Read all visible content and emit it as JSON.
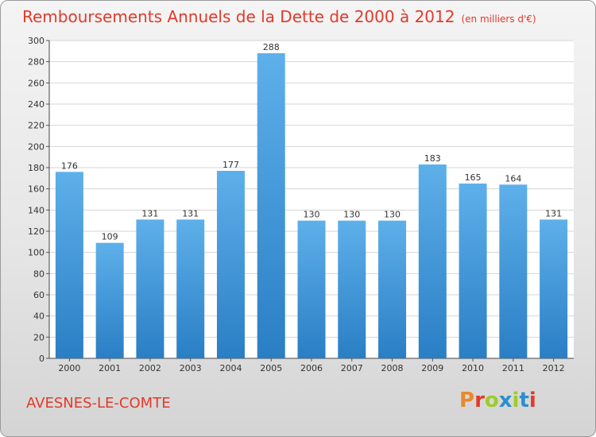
{
  "header": {
    "title": "Remboursements Annuels de la Dette de 2000 à 2012",
    "subtitle": "(en milliers d'€)"
  },
  "footer": {
    "city": "AVESNES-LE-COMTE",
    "logo": "Proxiti"
  },
  "colors": {
    "title": "#e23a2a",
    "bar_top": "#5eb0ea",
    "bar_bottom": "#2a7ec4",
    "logo_letters": [
      "#e8892a",
      "#e23a2a",
      "#9ccc2a",
      "#2a8fd0",
      "#9ccc2a",
      "#2a8fd0",
      "#e23a2a"
    ]
  },
  "chart_data": {
    "type": "bar",
    "categories": [
      "2000",
      "2001",
      "2002",
      "2003",
      "2004",
      "2005",
      "2006",
      "2007",
      "2008",
      "2009",
      "2010",
      "2011",
      "2012"
    ],
    "values": [
      176,
      109,
      131,
      131,
      177,
      288,
      130,
      130,
      130,
      183,
      165,
      164,
      131
    ],
    "title": "Remboursements Annuels de la Dette de 2000 à 2012",
    "subtitle": "(en milliers d'€)",
    "xlabel": "",
    "ylabel": "",
    "ylim": [
      0,
      300
    ],
    "yticks": [
      0,
      20,
      40,
      60,
      80,
      100,
      120,
      140,
      160,
      180,
      200,
      220,
      240,
      260,
      280,
      300
    ],
    "grid": true,
    "data_labels": true
  }
}
